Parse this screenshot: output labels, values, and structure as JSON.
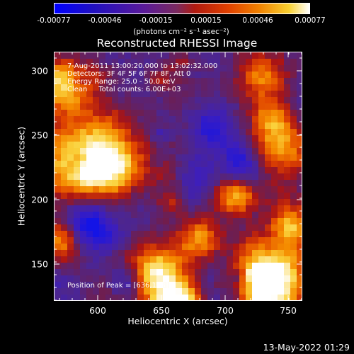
{
  "colorbar": {
    "ticks": [
      "-0.00077",
      "-0.00046",
      "-0.00015",
      "0.00015",
      "0.00046",
      "0.00077"
    ],
    "unit": "(photons cm⁻² s⁻¹ asec⁻²)"
  },
  "title": "Reconstructed RHESSI Image",
  "info": {
    "time": "7-Aug-2011 13:00:20.000 to 13:02:32.000",
    "detectors": "Detectors: 3F 4F 5F 6F 7F 8F, Att 0",
    "energy": "Energy Range: 25.0 - 50.0 keV",
    "clean": "Clean     Total counts: 6.00E+03",
    "peak": "Position of Peak = [636,128]"
  },
  "axes": {
    "xlabel": "Heliocentric X (arcsec)",
    "ylabel": "Heliocentric Y (arcsec)",
    "xticks": [
      "600",
      "650",
      "700",
      "750"
    ],
    "yticks": [
      "300",
      "250",
      "200",
      "150"
    ]
  },
  "timestamp": "13-May-2022 01:29",
  "colors": {
    "low": "#0000ff",
    "mid": "#5a1a9a",
    "high": "#ff8000",
    "max": "#ffffff"
  }
}
